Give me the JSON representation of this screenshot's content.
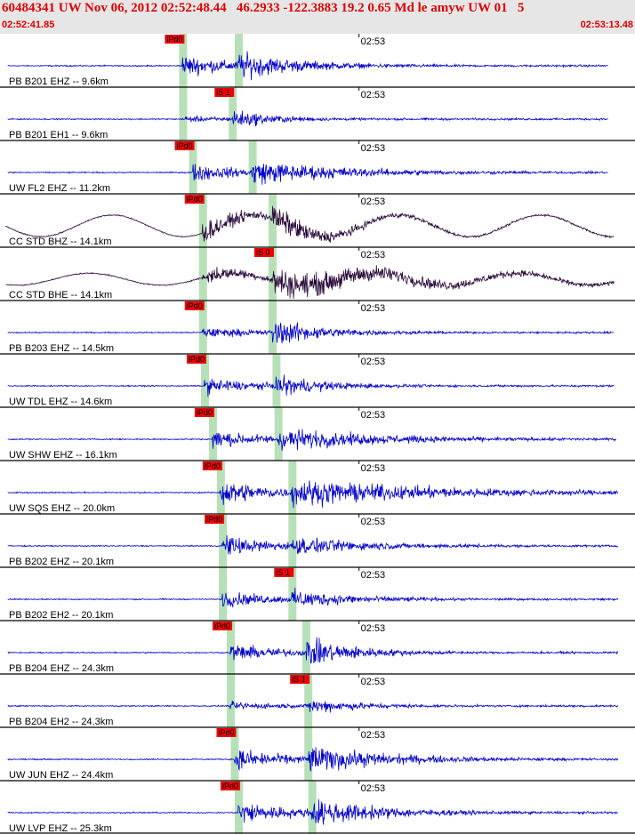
{
  "header": {
    "title": "60484341 UW Nov 06, 2012 02:52:48.44   46.2933 -122.3883 19.2 0.65 Md le amyw UW 01   5",
    "start_time": "02:52:41.85",
    "end_time": "02:53:13.48"
  },
  "colors": {
    "header_text": "#dd0000",
    "header_bg": "#e6e6e6",
    "trace_blue": "#0000cc",
    "trace_dark": "#2a0a3a",
    "pick_band": "#b8e0b8",
    "pick_box": "#ee0000",
    "separator": "#000000"
  },
  "chart_data": {
    "type": "line",
    "title": "60484341 UW Nov 06, 2012 02:52:48.44   46.2933 -122.3883 19.2 0.65 Md le amyw UW 01   5",
    "x_start": "02:52:41.85",
    "x_end": "02:53:13.48",
    "tick_label": "02:53",
    "tick_time_s": 18.15,
    "series": [
      {
        "name": "PB B201 EHZ -- 9.6km",
        "color": "blue",
        "p_time": 9.1,
        "s_time": 11.9,
        "pick": "iPd0",
        "pick_at": "p",
        "amp_p": 0.6,
        "amp_s": 0.8,
        "coda": 3.0,
        "long_period": 0,
        "end": 30.5
      },
      {
        "name": "PB B201 EH1 -- 9.6km",
        "color": "blue",
        "p_time": 9.1,
        "s_time": 11.6,
        "pick": "iS 1",
        "pick_at": "s",
        "amp_p": 0.15,
        "amp_s": 0.55,
        "coda": 2.0,
        "long_period": 0,
        "end": 30.5
      },
      {
        "name": "UW FL2 EHZ -- 11.2km",
        "color": "blue",
        "p_time": 9.6,
        "s_time": 12.6,
        "pick": "iPd0",
        "pick_at": "p",
        "amp_p": 0.5,
        "amp_s": 0.7,
        "coda": 4.5,
        "long_period": 0,
        "end": 30.5
      },
      {
        "name": "CC STD BHZ -- 14.1km",
        "color": "dark",
        "p_time": 10.1,
        "s_time": 13.6,
        "pick": "iPd0",
        "pick_at": "p",
        "amp_p": 0.6,
        "amp_s": 0.8,
        "coda": 3.0,
        "long_period": 0.45,
        "end": 30.8
      },
      {
        "name": "CC STD BHE -- 14.1km",
        "color": "dark",
        "p_time": 10.1,
        "s_time": 13.6,
        "pick": "iS 0",
        "pick_at": "s",
        "amp_p": 0.45,
        "amp_s": 0.85,
        "coda": 7.0,
        "long_period": 0.25,
        "end": 30.8
      },
      {
        "name": "PB B203 EHZ -- 14.5km",
        "color": "blue",
        "p_time": 10.1,
        "s_time": 13.6,
        "pick": "iPd0",
        "pick_at": "p",
        "amp_p": 0.3,
        "amp_s": 0.8,
        "coda": 2.5,
        "long_period": 0,
        "end": 30.8
      },
      {
        "name": "UW TDL EHZ -- 14.6km",
        "color": "blue",
        "p_time": 10.2,
        "s_time": 13.8,
        "pick": "iPd0",
        "pick_at": "p",
        "amp_p": 0.45,
        "amp_s": 0.6,
        "coda": 2.5,
        "long_period": 0,
        "end": 30.8
      },
      {
        "name": "UW SHW EHZ -- 16.1km",
        "color": "blue",
        "p_time": 10.6,
        "s_time": 13.9,
        "pick": "iPd0",
        "pick_at": "p",
        "amp_p": 0.5,
        "amp_s": 0.65,
        "coda": 5.0,
        "long_period": 0,
        "end": 30.9
      },
      {
        "name": "UW SQS EHZ -- 20.0km",
        "color": "blue",
        "p_time": 11.0,
        "s_time": 14.6,
        "pick": "iPd0",
        "pick_at": "p",
        "amp_p": 0.75,
        "amp_s": 0.75,
        "coda": 7.5,
        "long_period": 0,
        "end": 31.0
      },
      {
        "name": "PB B202 EHZ -- 20.1km",
        "color": "blue",
        "p_time": 11.1,
        "s_time": 14.6,
        "pick": "iPd0",
        "pick_at": "p",
        "amp_p": 0.6,
        "amp_s": 0.5,
        "coda": 4.0,
        "long_period": 0,
        "end": 31.0
      },
      {
        "name": "PB B202 EH2 -- 20.1km",
        "color": "blue",
        "p_time": 11.1,
        "s_time": 14.6,
        "pick": "iS 1",
        "pick_at": "s",
        "amp_p": 0.45,
        "amp_s": 0.55,
        "coda": 3.0,
        "long_period": 0,
        "end": 31.0
      },
      {
        "name": "PB B204 EHZ -- 24.3km",
        "color": "blue",
        "p_time": 11.5,
        "s_time": 15.3,
        "pick": "iPd0",
        "pick_at": "p",
        "amp_p": 0.5,
        "amp_s": 0.85,
        "coda": 2.5,
        "long_period": 0,
        "end": 31.0
      },
      {
        "name": "PB B204 EH2 -- 24.3km",
        "color": "blue",
        "p_time": 11.5,
        "s_time": 15.4,
        "pick": "iS 1",
        "pick_at": "s",
        "amp_p": 0.2,
        "amp_s": 0.45,
        "coda": 2.5,
        "long_period": 0,
        "end": 31.0
      },
      {
        "name": "UW JUN EHZ -- 24.4km",
        "color": "blue",
        "p_time": 11.7,
        "s_time": 15.4,
        "pick": "iPd0",
        "pick_at": "p",
        "amp_p": 0.6,
        "amp_s": 0.8,
        "coda": 4.0,
        "long_period": 0,
        "end": 31.0
      },
      {
        "name": "UW LVP EHZ -- 25.3km",
        "color": "blue",
        "p_time": 11.9,
        "s_time": 15.6,
        "pick": "iPd0",
        "pick_at": "p",
        "amp_p": 0.7,
        "amp_s": 0.8,
        "coda": 3.5,
        "long_period": 0,
        "end": 31.0
      }
    ]
  }
}
